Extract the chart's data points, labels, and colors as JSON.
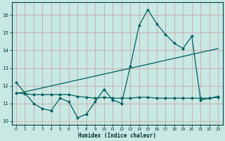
{
  "xlabel": "Humidex (Indice chaleur)",
  "background_color": "#c8e8e4",
  "grid_color": "#c8a8a8",
  "line_color": "#006060",
  "xlim": [
    -0.5,
    23.5
  ],
  "ylim": [
    9.8,
    16.7
  ],
  "yticks": [
    10,
    11,
    12,
    13,
    14,
    15,
    16
  ],
  "xticks": [
    0,
    1,
    2,
    3,
    4,
    5,
    6,
    7,
    8,
    9,
    10,
    11,
    12,
    13,
    14,
    15,
    16,
    17,
    18,
    19,
    20,
    21,
    22,
    23
  ],
  "series1": [
    12.2,
    11.6,
    11.0,
    10.7,
    10.6,
    11.3,
    11.1,
    10.2,
    10.4,
    11.1,
    11.8,
    11.2,
    11.0,
    13.1,
    15.4,
    16.3,
    15.5,
    14.9,
    14.4,
    14.1,
    14.8,
    11.2,
    11.3,
    11.4
  ],
  "series2": [
    11.6,
    11.55,
    11.5,
    11.5,
    11.5,
    11.5,
    11.5,
    11.4,
    11.35,
    11.3,
    11.35,
    11.3,
    11.3,
    11.3,
    11.35,
    11.35,
    11.3,
    11.3,
    11.3,
    11.3,
    11.3,
    11.3,
    11.3,
    11.35
  ],
  "trend_x": [
    0,
    23
  ],
  "trend_y": [
    11.55,
    14.1
  ],
  "x": [
    0,
    1,
    2,
    3,
    4,
    5,
    6,
    7,
    8,
    9,
    10,
    11,
    12,
    13,
    14,
    15,
    16,
    17,
    18,
    19,
    20,
    21,
    22,
    23
  ]
}
